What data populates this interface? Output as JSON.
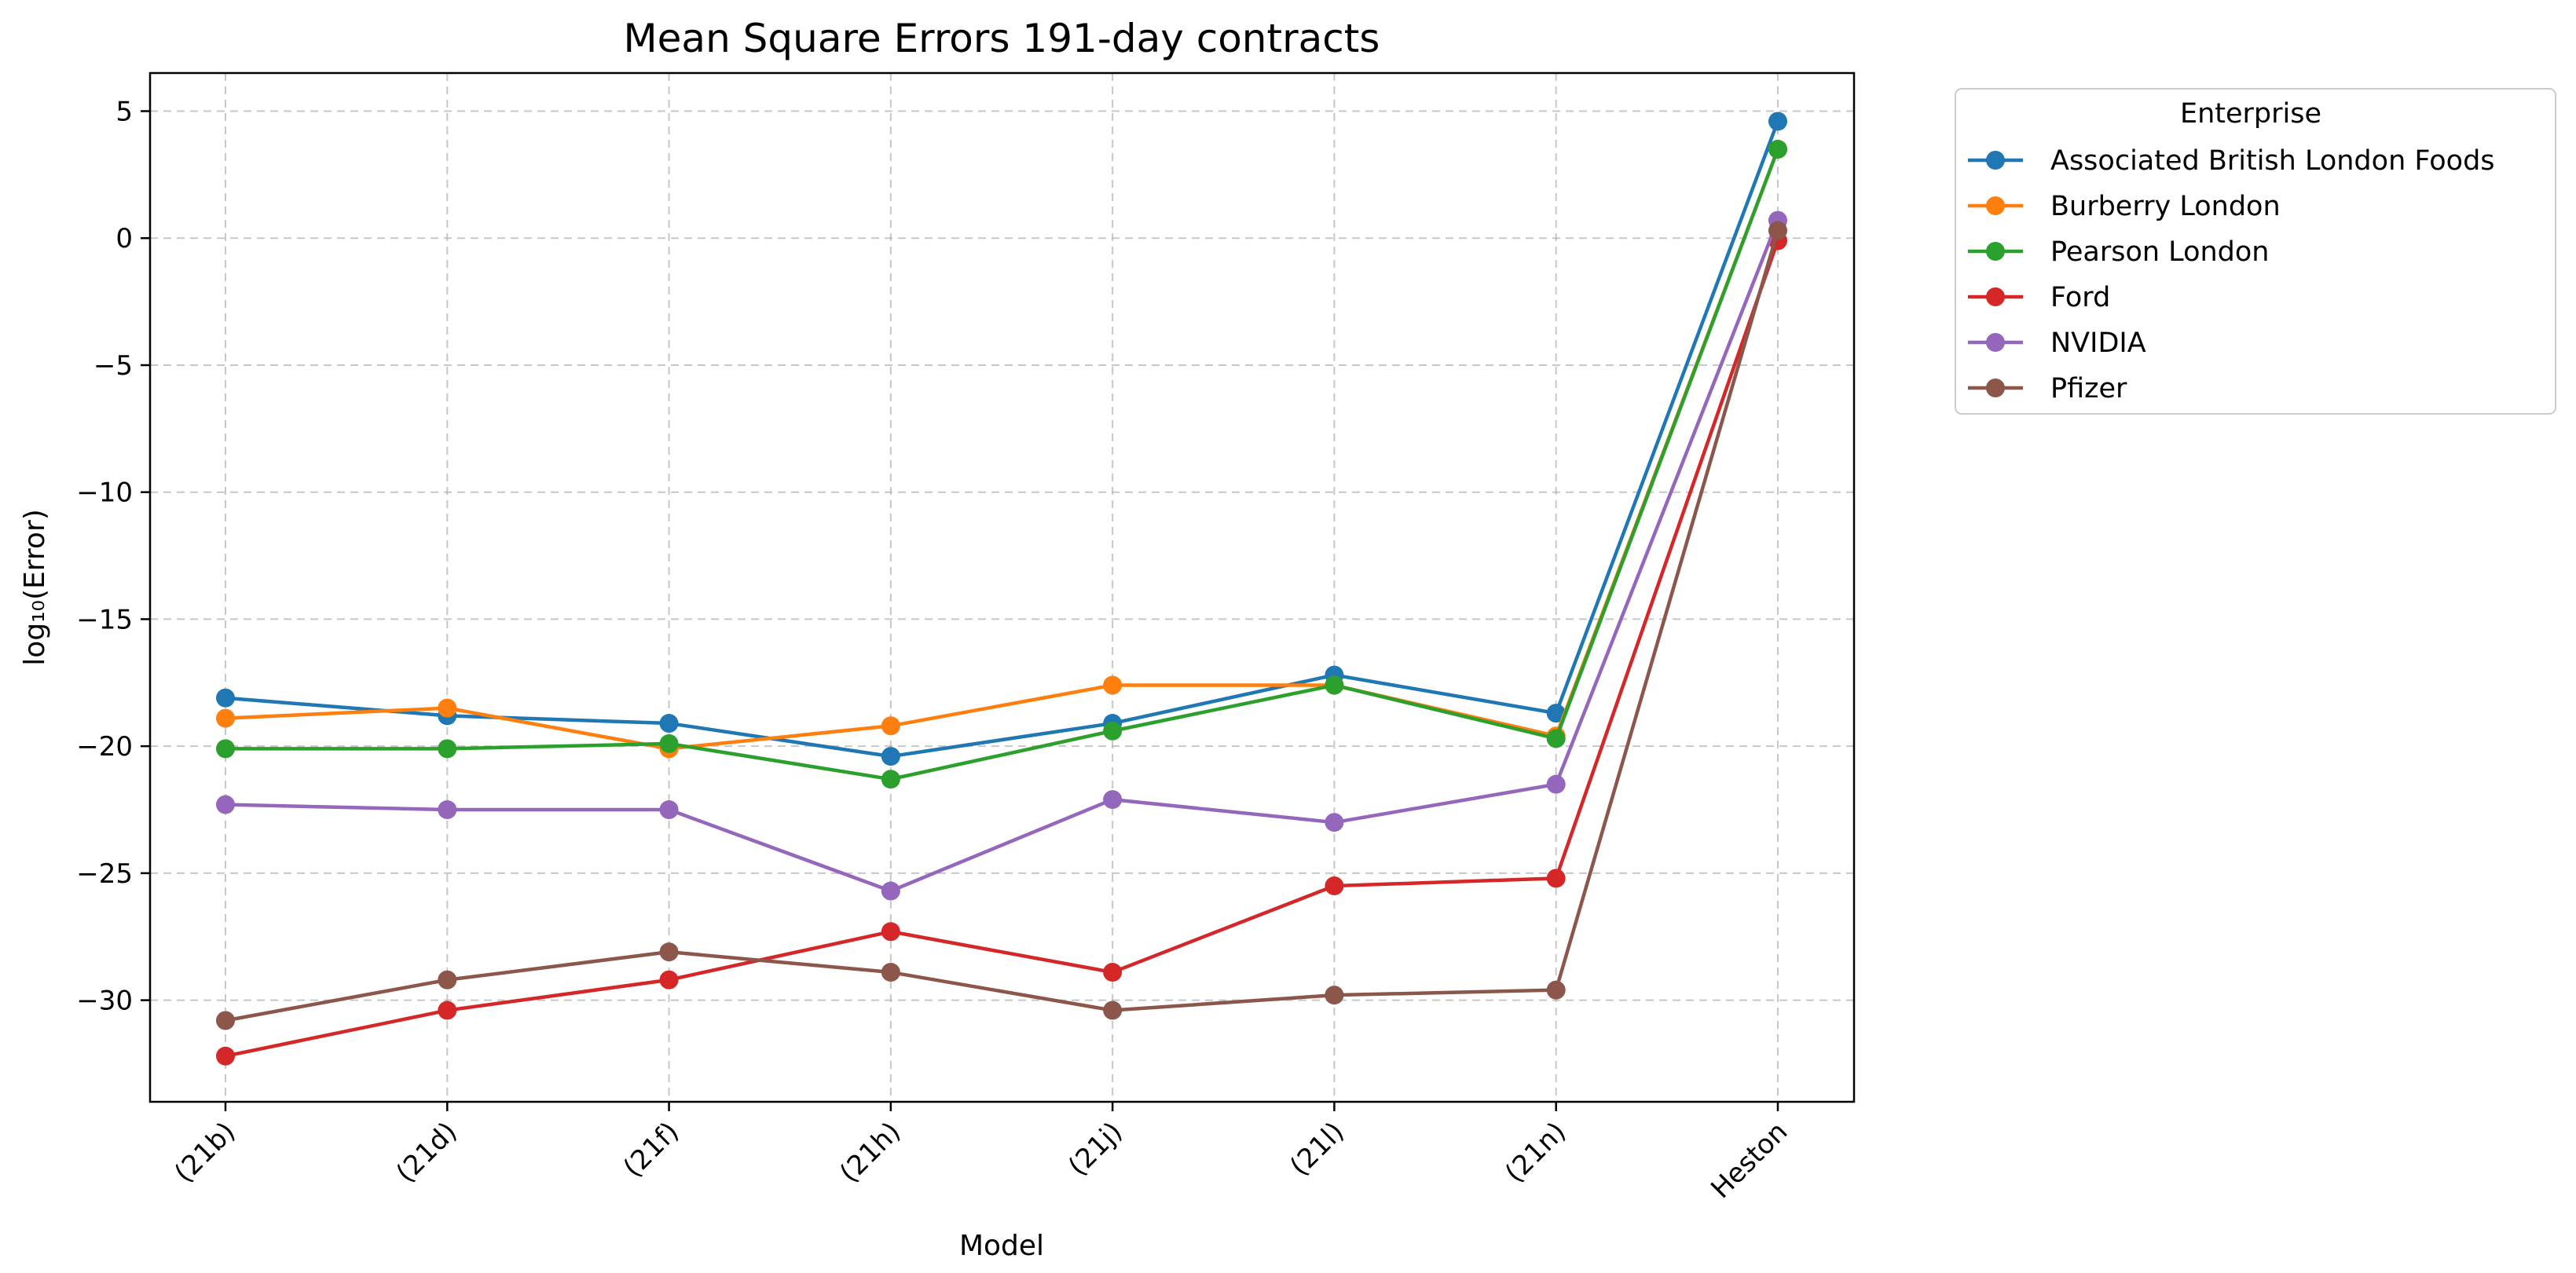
{
  "chart_data": {
    "type": "line",
    "title": "Mean Square Errors 191-day contracts",
    "xlabel": "Model",
    "ylabel": "log₁₀(Error)",
    "categories": [
      "(21b)",
      "(21d)",
      "(21f)",
      "(21h)",
      "(21j)",
      "(21l)",
      "(21n)",
      "Heston"
    ],
    "ylim": [
      -34,
      6.5
    ],
    "yticks": [
      5,
      0,
      -5,
      -10,
      -15,
      -20,
      -25,
      -30
    ],
    "ytick_labels": [
      "5",
      "0",
      "−5",
      "−10",
      "−15",
      "−20",
      "−25",
      "−30"
    ],
    "grid": true,
    "legend_title": "Enterprise",
    "legend_position": "outside-top-right",
    "series": [
      {
        "name": "Associated British London Foods",
        "color": "#1f77b4",
        "values": [
          -18.1,
          -18.8,
          -19.1,
          -20.4,
          -19.1,
          -17.2,
          -18.7,
          4.6
        ]
      },
      {
        "name": "Burberry London",
        "color": "#ff7f0e",
        "values": [
          -18.9,
          -18.5,
          -20.1,
          -19.2,
          -17.6,
          -17.6,
          -19.6,
          3.5
        ]
      },
      {
        "name": "Pearson London",
        "color": "#2ca02c",
        "values": [
          -20.1,
          -20.1,
          -19.9,
          -21.3,
          -19.4,
          -17.6,
          -19.7,
          3.5
        ]
      },
      {
        "name": "Ford",
        "color": "#d62728",
        "values": [
          -32.2,
          -30.4,
          -29.2,
          -27.3,
          -28.9,
          -25.5,
          -25.2,
          -0.1
        ]
      },
      {
        "name": "NVIDIA",
        "color": "#9467bd",
        "values": [
          -22.3,
          -22.5,
          -22.5,
          -25.7,
          -22.1,
          -23.0,
          -21.5,
          0.7
        ]
      },
      {
        "name": "Pfizer",
        "color": "#8c564b",
        "values": [
          -30.8,
          -29.2,
          -28.1,
          -28.9,
          -30.4,
          -29.8,
          -29.6,
          0.3
        ]
      }
    ]
  }
}
